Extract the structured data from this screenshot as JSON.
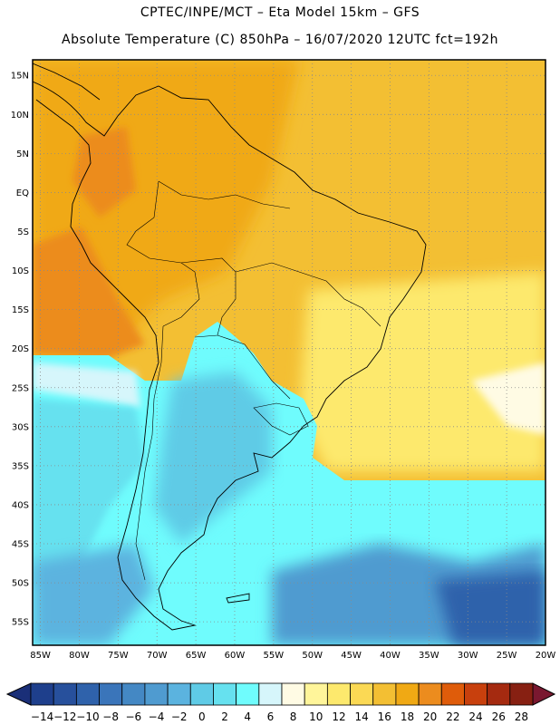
{
  "header": {
    "line1": "CPTEC/INPE/MCT –  Eta Model 15km – GFS",
    "line2": "Absolute Temperature (C) 850hPa – 16/07/2020 12UTC fct=192h"
  },
  "map": {
    "lat_labels": [
      "15N",
      "10N",
      "5N",
      "EQ",
      "5S",
      "10S",
      "15S",
      "20S",
      "25S",
      "30S",
      "35S",
      "40S",
      "45S",
      "50S",
      "55S"
    ],
    "lon_labels": [
      "85W",
      "80W",
      "75W",
      "70W",
      "65W",
      "60W",
      "55W",
      "50W",
      "45W",
      "40W",
      "35W",
      "30W",
      "25W",
      "20W"
    ]
  },
  "colorbar": {
    "labels": [
      "-14",
      "-12",
      "-10",
      "-8",
      "-6",
      "-4",
      "-2",
      "0",
      "2",
      "4",
      "6",
      "8",
      "10",
      "12",
      "14",
      "16",
      "18",
      "20",
      "22",
      "24",
      "26",
      "28"
    ],
    "colors": [
      "#1e3f8c",
      "#27509c",
      "#2f62ab",
      "#3a75ba",
      "#4488c4",
      "#4f9bd0",
      "#5bb3df",
      "#5fcbe6",
      "#66e1ef",
      "#6ffcfd",
      "#d6f6fb",
      "#fffbe4",
      "#fff59a",
      "#fde96d",
      "#fbd954",
      "#f3bf33",
      "#f0a914",
      "#ec8c1e",
      "#df5c0a",
      "#c8400d",
      "#a52a10",
      "#872012"
    ],
    "low_color": "#1a2f78",
    "high_color": "#7a1830"
  }
}
